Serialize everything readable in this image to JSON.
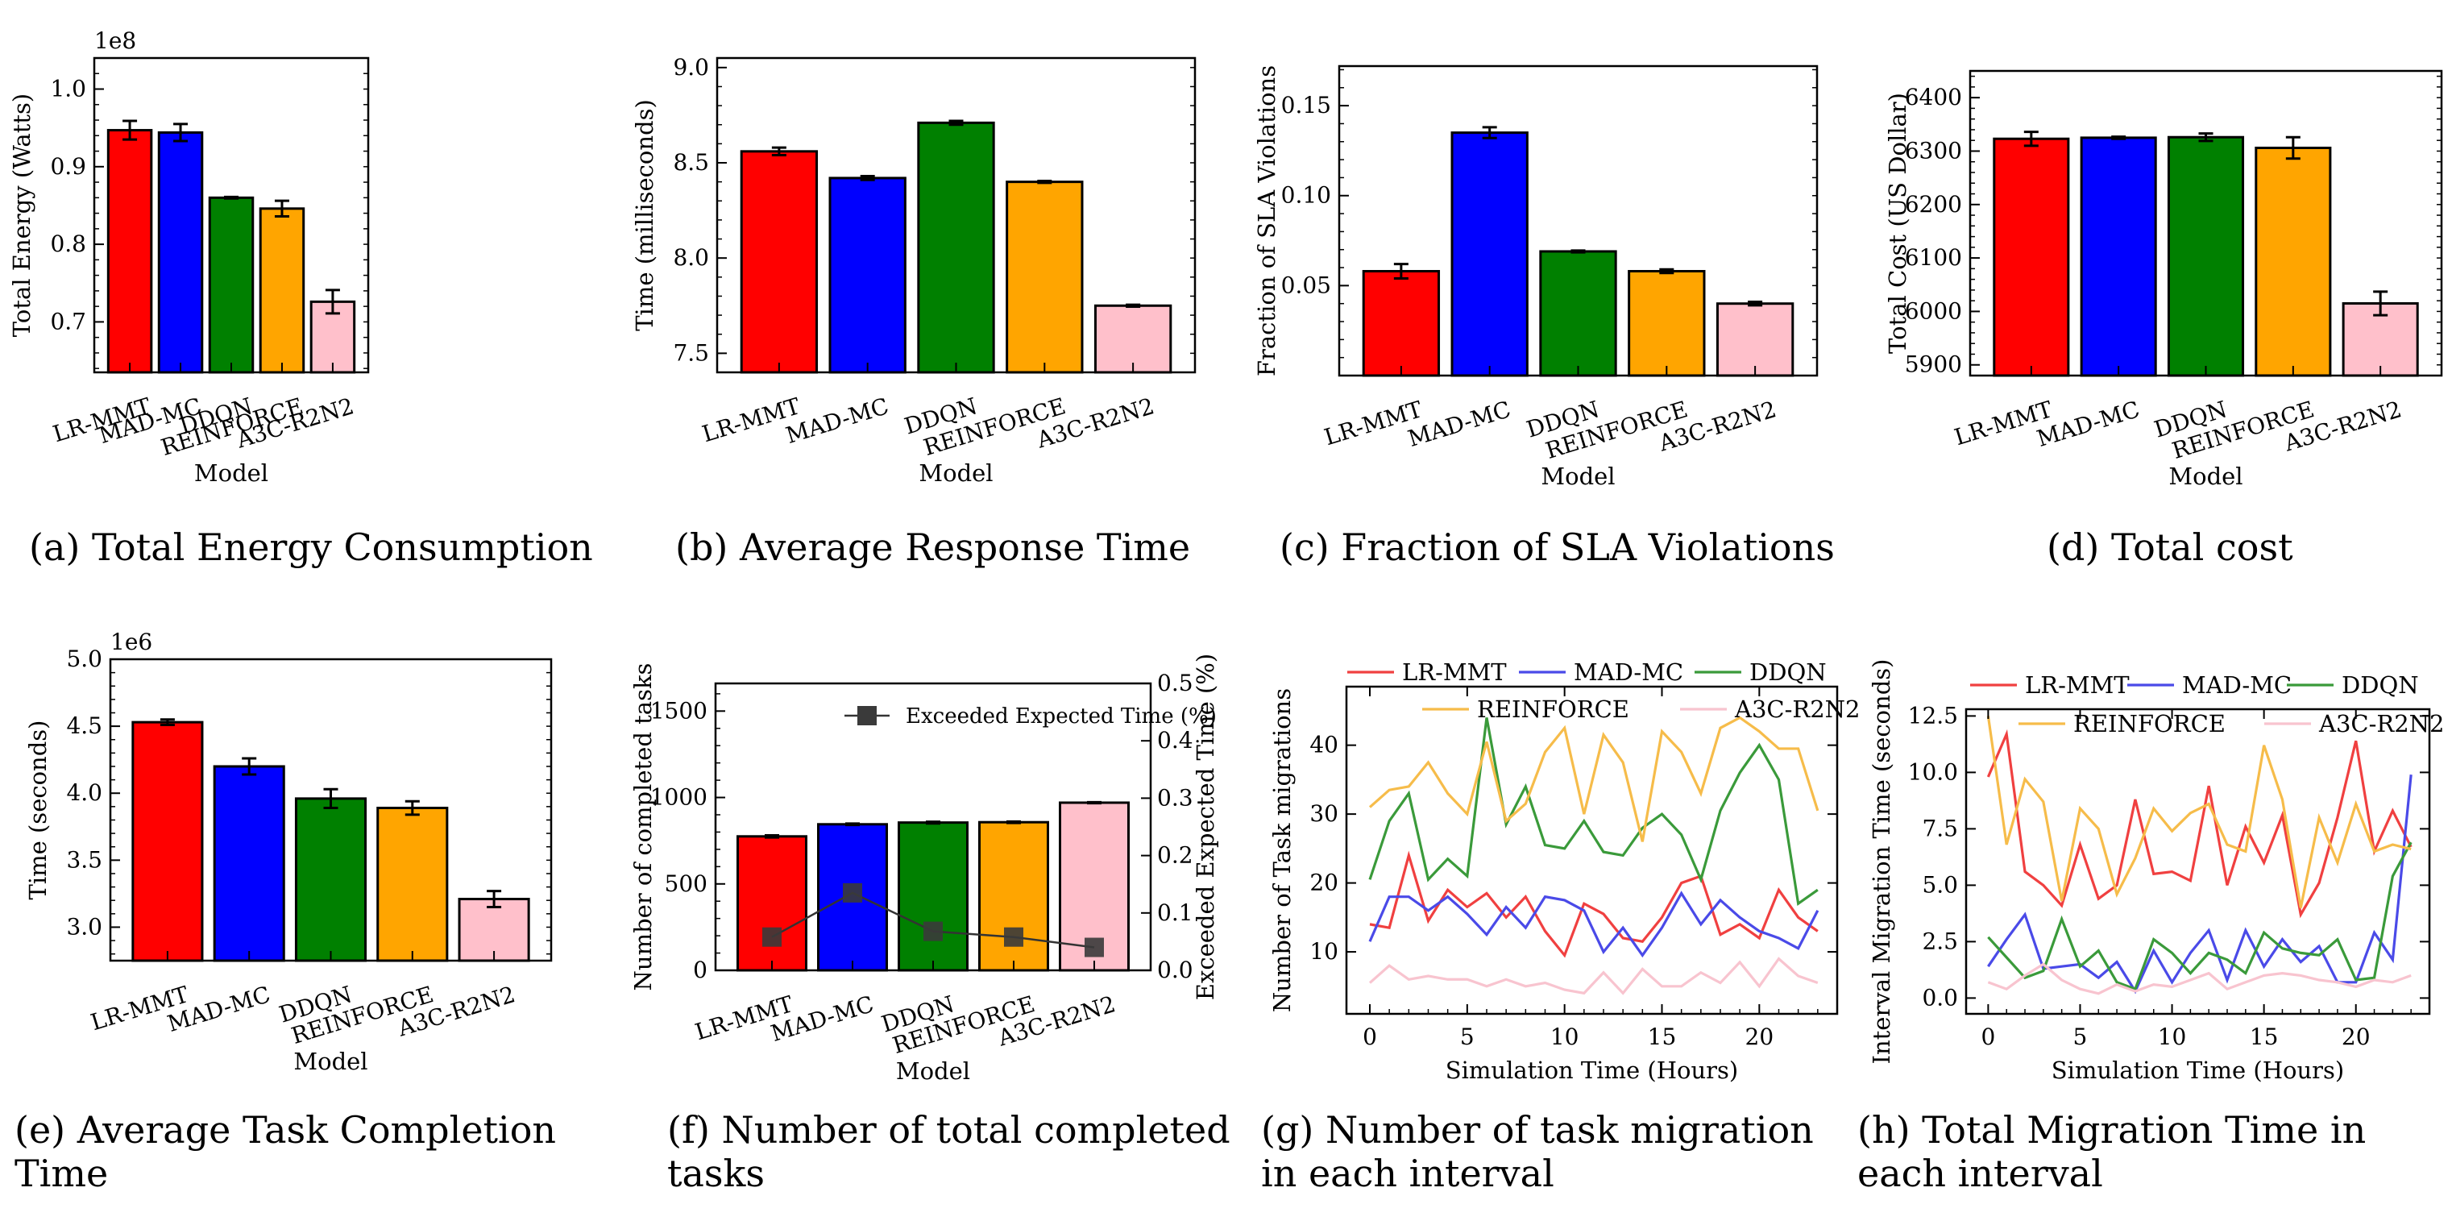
{
  "models": [
    "LR-MMT",
    "MAD-MC",
    "DDQN",
    "REINFORCE",
    "A3C-R2N2"
  ],
  "colors": {
    "LR-MMT": "#ff0000",
    "MAD-MC": "#0000ff",
    "DDQN": "#008000",
    "REINFORCE": "#ffa500",
    "A3C-R2N2": "#ffc0cb"
  },
  "line_colors": {
    "LR-MMT": "#f04040",
    "MAD-MC": "#4a4ae8",
    "DDQN": "#3a9a3a",
    "REINFORCE": "#f6bc4a",
    "A3C-R2N2": "#f8c4cf"
  },
  "chart_data": [
    {
      "id": "a",
      "type": "bar",
      "categories": [
        "LR-MMT",
        "MAD-MC",
        "DDQN",
        "REINFORCE",
        "A3C-R2N2"
      ],
      "values": [
        0.947,
        0.944,
        0.86,
        0.846,
        0.726
      ],
      "errors": [
        0.012,
        0.011,
        0.001,
        0.01,
        0.015
      ],
      "ylabel": "Total Energy (Watts)",
      "xlabel": "Model",
      "ylim": [
        0.635,
        1.04
      ],
      "yticks": [
        0.7,
        0.8,
        0.9,
        1.0
      ],
      "ytick_labels": [
        "0.7",
        "0.8",
        "0.9",
        "1.0"
      ],
      "offset_label": "1e8",
      "caption": "(a) Total Energy Consumption"
    },
    {
      "id": "b",
      "type": "bar",
      "categories": [
        "LR-MMT",
        "MAD-MC",
        "DDQN",
        "REINFORCE",
        "A3C-R2N2"
      ],
      "values": [
        8.56,
        8.42,
        8.71,
        8.4,
        7.75
      ],
      "errors": [
        0.02,
        0.01,
        0.01,
        0.005,
        0.005
      ],
      "ylabel": "Time (milliseconds)",
      "xlabel": "Model",
      "ylim": [
        7.4,
        9.05
      ],
      "yticks": [
        7.5,
        8.0,
        8.5,
        9.0
      ],
      "ytick_labels": [
        "7.5",
        "8.0",
        "8.5",
        "9.0"
      ],
      "caption": "(b) Average Response Time"
    },
    {
      "id": "c",
      "type": "bar",
      "categories": [
        "LR-MMT",
        "MAD-MC",
        "DDQN",
        "REINFORCE",
        "A3C-R2N2"
      ],
      "values": [
        0.058,
        0.135,
        0.069,
        0.058,
        0.04
      ],
      "errors": [
        0.004,
        0.003,
        0.0005,
        0.001,
        0.001
      ],
      "ylabel": "Fraction of SLA Violations",
      "xlabel": "Model",
      "ylim": [
        0.0,
        0.172
      ],
      "yticks": [
        0.05,
        0.1,
        0.15
      ],
      "ytick_labels": [
        "0.05",
        "0.10",
        "0.15"
      ],
      "caption": "(c) Fraction of SLA Violations"
    },
    {
      "id": "d",
      "type": "bar",
      "categories": [
        "LR-MMT",
        "MAD-MC",
        "DDQN",
        "REINFORCE",
        "A3C-R2N2"
      ],
      "values": [
        6323,
        6325,
        6326,
        6306,
        6015
      ],
      "errors": [
        13,
        2,
        7,
        20,
        22
      ],
      "ylabel": "Total Cost (US Dollar)",
      "xlabel": "Model",
      "ylim": [
        5880,
        6450
      ],
      "yticks": [
        5900,
        6000,
        6100,
        6200,
        6300,
        6400
      ],
      "ytick_labels": [
        "5900",
        "6000",
        "6100",
        "6200",
        "6300",
        "6400"
      ],
      "caption": "(d) Total cost"
    },
    {
      "id": "e",
      "type": "bar",
      "categories": [
        "LR-MMT",
        "MAD-MC",
        "DDQN",
        "REINFORCE",
        "A3C-R2N2"
      ],
      "values": [
        4.53,
        4.2,
        3.96,
        3.89,
        3.21
      ],
      "errors": [
        0.02,
        0.06,
        0.07,
        0.05,
        0.06
      ],
      "ylabel": "Time (seconds)",
      "xlabel": "Model",
      "ylim": [
        2.75,
        5.0
      ],
      "yticks": [
        3.0,
        3.5,
        4.0,
        4.5,
        5.0
      ],
      "ytick_labels": [
        "3.0",
        "3.5",
        "4.0",
        "4.5",
        "5.0"
      ],
      "offset_label": "1e6",
      "caption": "(e) Average Task Completion Time"
    },
    {
      "id": "f",
      "type": "bar+line",
      "categories": [
        "LR-MMT",
        "MAD-MC",
        "DDQN",
        "REINFORCE",
        "A3C-R2N2"
      ],
      "values": [
        775,
        845,
        855,
        857,
        970
      ],
      "errors": [
        6,
        4,
        5,
        4,
        3
      ],
      "line_name": "Exceeded Expected Time (%)",
      "line_values": [
        0.058,
        0.135,
        0.068,
        0.058,
        0.04
      ],
      "ylabel": "Number of completed tasks",
      "y2label": "Exceeded Expected Time (%)",
      "xlabel": "Model",
      "ylim": [
        0,
        1660
      ],
      "y2lim": [
        0,
        0.5
      ],
      "yticks": [
        0,
        500,
        1000,
        1500
      ],
      "ytick_labels": [
        "0",
        "500",
        "1000",
        "1500"
      ],
      "y2ticks": [
        0.0,
        0.1,
        0.2,
        0.3,
        0.4,
        0.5
      ],
      "y2tick_labels": [
        "0.0",
        "0.1",
        "0.2",
        "0.3",
        "0.4",
        "0.5"
      ],
      "caption": "(f) Number of total completed tasks"
    },
    {
      "id": "g",
      "type": "line",
      "x": [
        0,
        1,
        2,
        3,
        4,
        5,
        6,
        7,
        8,
        9,
        10,
        11,
        12,
        13,
        14,
        15,
        16,
        17,
        18,
        19,
        20,
        21,
        22,
        23
      ],
      "series": [
        {
          "name": "LR-MMT",
          "values": [
            14,
            13.5,
            24,
            14.5,
            19,
            16.5,
            18.5,
            15,
            18,
            13,
            9.5,
            17,
            15.5,
            12,
            11.5,
            15,
            20,
            21,
            12.5,
            14,
            12,
            19,
            15,
            13
          ]
        },
        {
          "name": "MAD-MC",
          "values": [
            11.5,
            18,
            18,
            16,
            18,
            15.5,
            12.5,
            16.5,
            13.5,
            18,
            17.5,
            16,
            10,
            13.5,
            9.5,
            13.5,
            18.5,
            14,
            17.5,
            15,
            13,
            12,
            10.5,
            16
          ]
        },
        {
          "name": "DDQN",
          "values": [
            20.5,
            29,
            33,
            20.5,
            23.5,
            21,
            44,
            28.5,
            34,
            25.5,
            25,
            29,
            24.5,
            24,
            28,
            30,
            27,
            20.5,
            30.5,
            36,
            40,
            35,
            17,
            19
          ]
        },
        {
          "name": "REINFORCE",
          "values": [
            31,
            33.5,
            34,
            37.5,
            33,
            30,
            40.5,
            29,
            31.5,
            39,
            42.5,
            30,
            41.5,
            37.5,
            26,
            42,
            39,
            33,
            42.5,
            44,
            42,
            39.5,
            39.5,
            30.5
          ]
        },
        {
          "name": "A3C-R2N2",
          "values": [
            5.5,
            8,
            6,
            6.5,
            6,
            6,
            5,
            6,
            5,
            5.5,
            4.5,
            4,
            7,
            4,
            7.5,
            5,
            5,
            7,
            5.5,
            8.5,
            5,
            9,
            6.5,
            5.5
          ]
        }
      ],
      "xlabel": "Simulation Time (Hours)",
      "ylabel": "Number of Task migrations",
      "xlim": [
        -1.2,
        24.0
      ],
      "ylim": [
        1,
        48.5
      ],
      "xticks": [
        0,
        5,
        10,
        15,
        20
      ],
      "xtick_labels": [
        "0",
        "5",
        "10",
        "15",
        "20"
      ],
      "yticks": [
        10,
        20,
        30,
        40
      ],
      "ytick_labels": [
        "10",
        "20",
        "30",
        "40"
      ],
      "caption": "(g) Number of task migration in each interval"
    },
    {
      "id": "h",
      "type": "line",
      "x": [
        0,
        1,
        2,
        3,
        4,
        5,
        6,
        7,
        8,
        9,
        10,
        11,
        12,
        13,
        14,
        15,
        16,
        17,
        18,
        19,
        20,
        21,
        22,
        23
      ],
      "series": [
        {
          "name": "LR-MMT",
          "values": [
            9.8,
            11.7,
            5.6,
            5.0,
            4.1,
            6.8,
            4.4,
            5.0,
            8.8,
            5.5,
            5.6,
            5.2,
            9.4,
            5.0,
            7.6,
            6.0,
            8.1,
            3.7,
            5.1,
            8.0,
            11.4,
            6.5,
            8.3,
            6.7
          ]
        },
        {
          "name": "MAD-MC",
          "values": [
            1.4,
            2.6,
            3.7,
            1.3,
            1.4,
            1.5,
            0.9,
            1.6,
            0.3,
            2.1,
            0.7,
            2.0,
            3.0,
            0.8,
            3.0,
            1.4,
            2.6,
            1.6,
            2.3,
            0.7,
            0.7,
            2.9,
            1.7,
            9.9
          ]
        },
        {
          "name": "DDQN",
          "values": [
            2.7,
            1.8,
            0.9,
            1.2,
            3.5,
            1.4,
            2.1,
            0.7,
            0.4,
            2.6,
            2.0,
            1.1,
            2.0,
            1.7,
            1.1,
            2.9,
            2.2,
            2.0,
            1.9,
            2.6,
            0.8,
            0.9,
            5.4,
            6.9
          ]
        },
        {
          "name": "REINFORCE",
          "values": [
            12.5,
            6.8,
            9.7,
            8.7,
            4.3,
            8.4,
            7.5,
            4.6,
            6.2,
            8.4,
            7.4,
            8.2,
            8.6,
            6.8,
            6.5,
            11.2,
            8.8,
            4.0,
            8.0,
            6.0,
            8.6,
            6.5,
            6.8,
            6.6
          ]
        },
        {
          "name": "A3C-R2N2",
          "values": [
            0.7,
            0.4,
            1.0,
            1.5,
            0.8,
            0.4,
            0.2,
            0.6,
            0.3,
            0.6,
            0.5,
            0.8,
            1.1,
            0.4,
            0.7,
            1.0,
            1.1,
            1.0,
            0.8,
            0.7,
            0.5,
            0.8,
            0.7,
            1.0
          ]
        }
      ],
      "xlabel": "Simulation Time (Hours)",
      "ylabel": "Interval Migration Time (seconds)",
      "xlim": [
        -1.2,
        24.0
      ],
      "ylim": [
        -0.7,
        12.8
      ],
      "xticks": [
        0,
        5,
        10,
        15,
        20
      ],
      "xtick_labels": [
        "0",
        "5",
        "10",
        "15",
        "20"
      ],
      "yticks": [
        0.0,
        2.5,
        5.0,
        7.5,
        10.0,
        12.5
      ],
      "ytick_labels": [
        "0.0",
        "2.5",
        "5.0",
        "7.5",
        "10.0",
        "12.5"
      ],
      "caption": "(h) Total Migration Time in each interval"
    }
  ]
}
